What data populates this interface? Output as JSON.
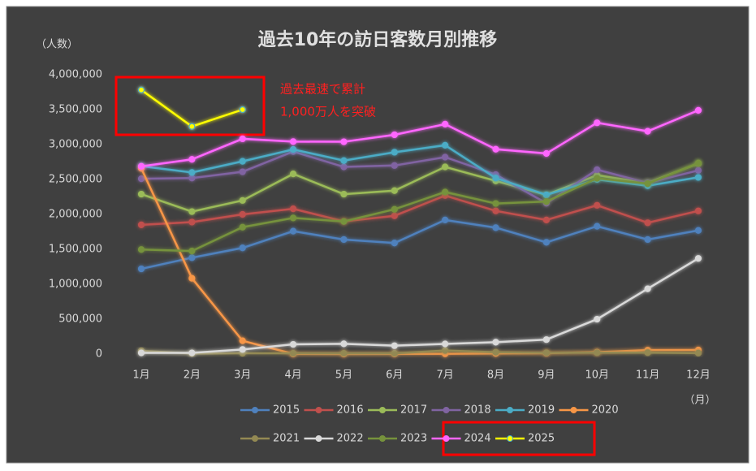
{
  "chart_data": {
    "type": "line",
    "title": "過去10年の訪日客数月別推移",
    "y_label": "（人数）",
    "x_label": "（月）",
    "annotation": [
      "過去最速で累計",
      "1,000万人を突破"
    ],
    "categories": [
      "1月",
      "2月",
      "3月",
      "4月",
      "5月",
      "6月",
      "7月",
      "8月",
      "9月",
      "10月",
      "11月",
      "12月"
    ],
    "ylim": [
      0,
      4000000
    ],
    "yticks": [
      0,
      {
        "value": 500000,
        "label": "500,000"
      },
      {
        "value": 1000000,
        "label": "1,000,000"
      },
      {
        "value": 1500000,
        "label": "1,500,000"
      },
      {
        "value": 2000000,
        "label": "2,000,000"
      },
      {
        "value": 2500000,
        "label": "2,500,000"
      },
      {
        "value": 3000000,
        "label": "3,000,000"
      },
      {
        "value": 3500000,
        "label": "3,500,000"
      },
      {
        "value": 4000000,
        "label": "4,000,000"
      }
    ],
    "grid": false,
    "series": [
      {
        "name": "2015",
        "color": "#4f81bd",
        "values": [
          1220000,
          1380000,
          1520000,
          1760000,
          1640000,
          1590000,
          1920000,
          1810000,
          1600000,
          1830000,
          1640000,
          1770000
        ]
      },
      {
        "name": "2016",
        "color": "#c0504d",
        "values": [
          1850000,
          1890000,
          2000000,
          2080000,
          1900000,
          1980000,
          2270000,
          2050000,
          1920000,
          2130000,
          1880000,
          2050000
        ]
      },
      {
        "name": "2017",
        "color": "#9bbb59",
        "values": [
          2290000,
          2040000,
          2200000,
          2580000,
          2290000,
          2340000,
          2680000,
          2480000,
          2280000,
          2560000,
          2450000,
          2730000
        ]
      },
      {
        "name": "2018",
        "color": "#8064a2",
        "values": [
          2510000,
          2520000,
          2610000,
          2900000,
          2680000,
          2700000,
          2820000,
          2570000,
          2160000,
          2640000,
          2450000,
          2630000
        ]
      },
      {
        "name": "2019",
        "color": "#4bacc6",
        "values": [
          2690000,
          2600000,
          2760000,
          2930000,
          2770000,
          2890000,
          2990000,
          2520000,
          2280000,
          2500000,
          2410000,
          2530000
        ]
      },
      {
        "name": "2020",
        "color": "#f79646",
        "values": [
          2660000,
          1085000,
          190000,
          3000,
          1700,
          2600,
          3800,
          8700,
          13700,
          27000,
          56000,
          58000
        ]
      },
      {
        "name": "2021",
        "color": "#938953",
        "values": [
          46000,
          7000,
          12000,
          11000,
          10000,
          10000,
          51000,
          26000,
          18000,
          21000,
          21000,
          15000
        ]
      },
      {
        "name": "2022",
        "color": "#d9d9d9",
        "values": [
          17000,
          17000,
          66000,
          139000,
          147000,
          120000,
          145000,
          170000,
          207000,
          499000,
          935000,
          1370000
        ]
      },
      {
        "name": "2023",
        "color": "#76923c",
        "values": [
          1497000,
          1475000,
          1817000,
          1949000,
          1899000,
          2073000,
          2320000,
          2156000,
          2184000,
          2517000,
          2441000,
          2734000
        ]
      },
      {
        "name": "2024",
        "color": "#ff66ff",
        "values": [
          2688000,
          2788000,
          3082000,
          3042000,
          3040000,
          3140000,
          3292000,
          2933000,
          2872000,
          3312000,
          3190000,
          3490000
        ]
      },
      {
        "name": "2025",
        "color": "#ffff00",
        "values": [
          3782000,
          3259000,
          3500000,
          null,
          null,
          null,
          null,
          null,
          null,
          null,
          null,
          null
        ]
      }
    ]
  }
}
